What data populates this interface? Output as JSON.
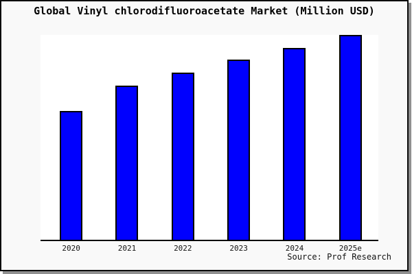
{
  "title": "Global Vinyl chlorodifluoroacetate Market (Million USD)",
  "source": "Source: Prof Research",
  "chart_data": {
    "type": "bar",
    "title": "Global Vinyl chlorodifluoroacetate Market (Million USD)",
    "categories": [
      "2020",
      "2021",
      "2022",
      "2023",
      "2024",
      "2025e"
    ],
    "values": [
      62.8,
      75.3,
      81.6,
      87.8,
      93.8,
      100
    ],
    "xlabel": "",
    "ylabel": "",
    "ylim": [
      0,
      100
    ],
    "y_axis_visible": false,
    "grid": false,
    "legend": false,
    "bar_color": "#0000fe",
    "bar_border_color": "#000000",
    "plot_background": "#ffffff",
    "figure_background": "#f9f9f9"
  }
}
